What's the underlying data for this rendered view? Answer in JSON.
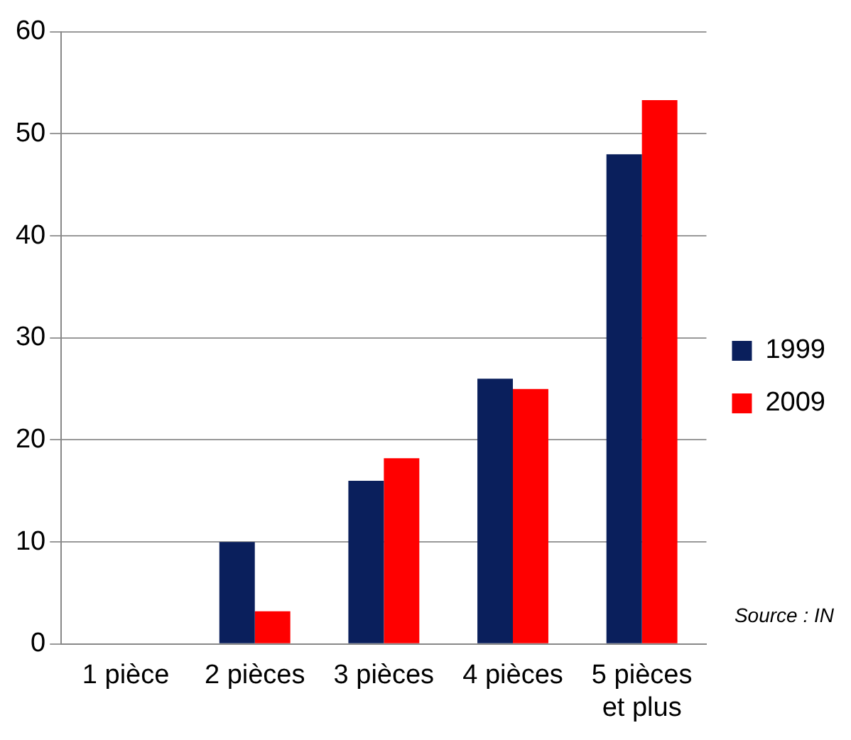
{
  "chart_data": {
    "type": "bar",
    "categories": [
      "1 pièce",
      "2 pièces",
      "3 pièces",
      "4 pièces",
      "5 pièces et plus"
    ],
    "series": [
      {
        "name": "1999",
        "color": "#0a1f5c",
        "values": [
          0,
          10,
          16,
          26,
          48
        ]
      },
      {
        "name": "2009",
        "color": "#ff0000",
        "values": [
          0,
          3.2,
          18.2,
          25,
          53.3
        ]
      }
    ],
    "ylim": [
      0,
      60
    ],
    "yticks": [
      0,
      10,
      20,
      30,
      40,
      50,
      60
    ],
    "grid": "y",
    "legend": "right",
    "annotations": [
      "Source : IN"
    ]
  }
}
